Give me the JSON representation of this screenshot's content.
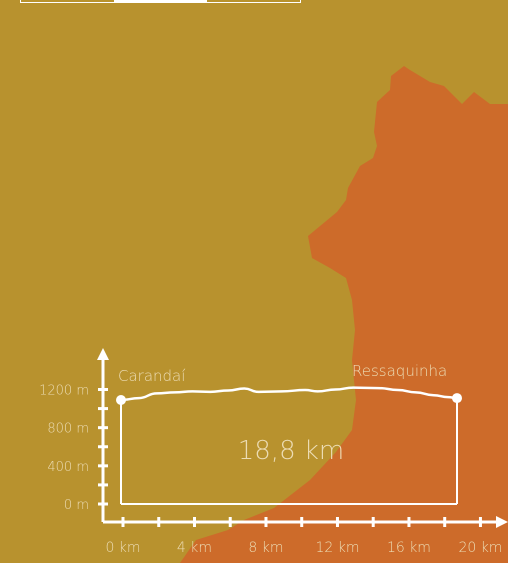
{
  "colors": {
    "background": "#b8922e",
    "region": "#cd6b2a",
    "foreground": "#ffffff",
    "muted_label": "#ecdcb4"
  },
  "tabs": {
    "active_index": 1,
    "count": 3
  },
  "chart_data": {
    "type": "area",
    "title": "",
    "distance_label": "18,8 km",
    "xlabel": "",
    "ylabel": "",
    "x_unit": "km",
    "y_unit": "m",
    "xlim": [
      0,
      20
    ],
    "ylim": [
      0,
      1200
    ],
    "x_ticks": [
      0,
      4,
      8,
      12,
      16,
      20
    ],
    "x_tick_labels": [
      "0 km",
      "4 km",
      "8 km",
      "12 km",
      "16 km",
      "20 km"
    ],
    "x_minor_ticks": [
      0,
      2,
      4,
      6,
      8,
      10,
      12,
      14,
      16,
      18,
      20
    ],
    "y_ticks": [
      0,
      400,
      800,
      1200
    ],
    "y_tick_labels": [
      "0 m",
      "400 m",
      "800 m",
      "1200 m"
    ],
    "y_minor_ticks": [
      0,
      200,
      400,
      600,
      800,
      1000,
      1200
    ],
    "start": {
      "name": "Carandaí",
      "x": 0,
      "y": 1090
    },
    "end": {
      "name": "Ressaquinha",
      "x": 18.8,
      "y": 1110
    },
    "series": [
      {
        "values": [
          [
            0,
            1090
          ],
          [
            1,
            1110
          ],
          [
            2,
            1160
          ],
          [
            3,
            1170
          ],
          [
            4,
            1180
          ],
          [
            5,
            1175
          ],
          [
            6,
            1190
          ],
          [
            6.9,
            1210
          ],
          [
            7.7,
            1175
          ],
          [
            9,
            1180
          ],
          [
            10.3,
            1195
          ],
          [
            11,
            1180
          ],
          [
            12,
            1200
          ],
          [
            13,
            1220
          ],
          [
            14.4,
            1215
          ],
          [
            15.5,
            1195
          ],
          [
            16.5,
            1170
          ],
          [
            17.5,
            1140
          ],
          [
            18.3,
            1120
          ],
          [
            18.8,
            1110
          ]
        ]
      }
    ]
  }
}
